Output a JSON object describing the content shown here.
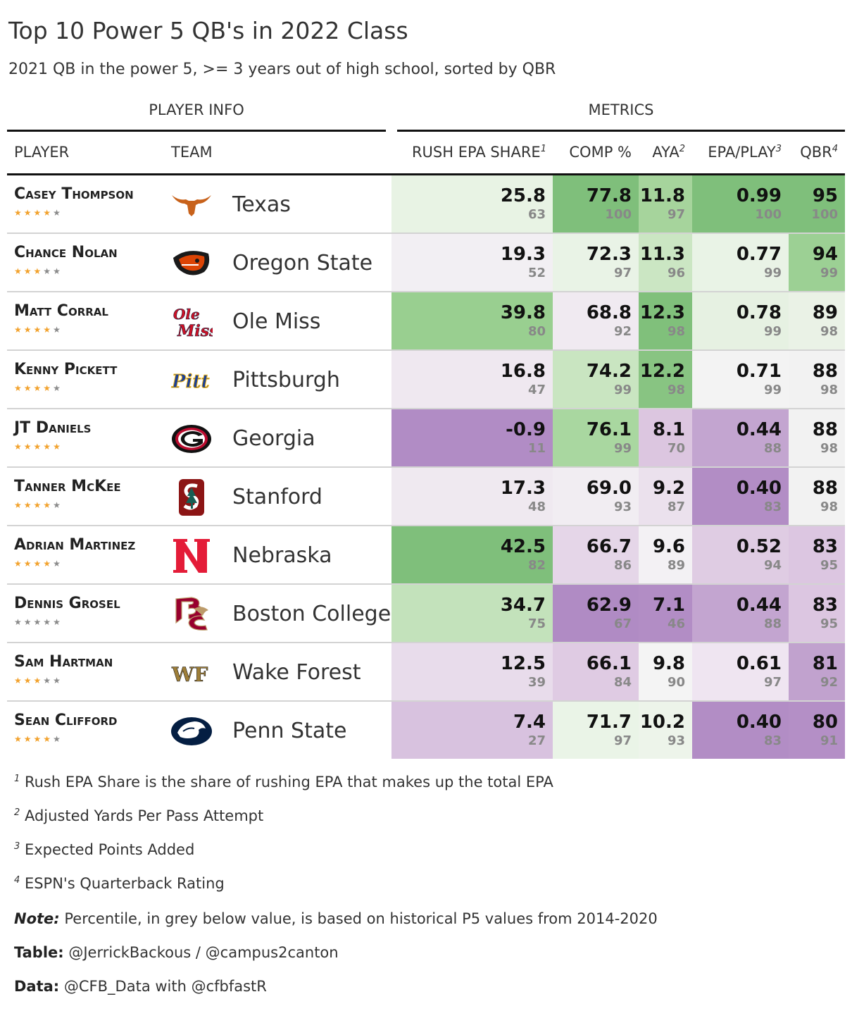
{
  "title": "Top 10 Power 5 QB's in 2022 Class",
  "subtitle": "2021 QB in the power 5, >= 3 years out of high school, sorted by QBR",
  "spanners": {
    "player_info": "PLAYER INFO",
    "metrics": "METRICS"
  },
  "columns": {
    "player": "PLAYER",
    "team": "TEAM",
    "rush_epa": "RUSH EPA SHARE",
    "rush_epa_fn": "1",
    "comp": "COMP %",
    "aya": "AYA",
    "aya_fn": "2",
    "epa_play": "EPA/PLAY",
    "epa_play_fn": "3",
    "qbr": "QBR",
    "qbr_fn": "4"
  },
  "colors": {
    "green_dark": "#7fbf7b",
    "green_mid": "#a6dba0",
    "green_light": "#d9f0d3",
    "neutral": "#f7f7f7",
    "purple_light": "#e7d4e8",
    "purple_mid": "#c2a5cf",
    "purple_dark": "#af8dc3",
    "star_on": "#f2a22d",
    "star_off": "#8a8a8a"
  },
  "chart_data": {
    "type": "table",
    "title": "Top 10 Power 5 QB's in 2022 Class",
    "rows": [
      {
        "player": "Casey Thompson",
        "stars": 4,
        "logo": "texas-longhorn-logo",
        "team": "Texas",
        "rush_epa": "25.8",
        "rush_epa_pct": "63",
        "comp": "77.8",
        "comp_pct": "100",
        "aya": "11.8",
        "aya_pct": "97",
        "epa_play": "0.99",
        "epa_play_pct": "100",
        "qbr": "95",
        "qbr_pct": "100",
        "colors": {
          "rush_epa": "#e8f3e4",
          "comp": "#7fbf7b",
          "aya": "#a6d49c",
          "epa_play": "#7fbf7b",
          "qbr": "#7fbf7b"
        }
      },
      {
        "player": "Chance Nolan",
        "stars": 3,
        "logo": "oregon-state-beaver-logo",
        "team": "Oregon State",
        "rush_epa": "19.3",
        "rush_epa_pct": "52",
        "comp": "72.3",
        "comp_pct": "97",
        "aya": "11.3",
        "aya_pct": "96",
        "epa_play": "0.77",
        "epa_play_pct": "99",
        "qbr": "94",
        "qbr_pct": "99",
        "colors": {
          "rush_epa": "#f2eff3",
          "comp": "#e9f3e6",
          "aya": "#cbe6c3",
          "epa_play": "#e9f3e6",
          "qbr": "#9cd094"
        }
      },
      {
        "player": "Matt Corral",
        "stars": 4,
        "logo": "ole-miss-script-logo",
        "team": "Ole Miss",
        "rush_epa": "39.8",
        "rush_epa_pct": "80",
        "comp": "68.8",
        "comp_pct": "92",
        "aya": "12.3",
        "aya_pct": "98",
        "epa_play": "0.78",
        "epa_play_pct": "99",
        "qbr": "89",
        "qbr_pct": "98",
        "colors": {
          "rush_epa": "#99cf90",
          "comp": "#f0eaf1",
          "aya": "#80c07b",
          "epa_play": "#e6f1e2",
          "qbr": "#eaf2e6"
        }
      },
      {
        "player": "Kenny Pickett",
        "stars": 4,
        "logo": "pitt-script-logo",
        "team": "Pittsburgh",
        "rush_epa": "16.8",
        "rush_epa_pct": "47",
        "comp": "74.2",
        "comp_pct": "99",
        "aya": "12.2",
        "aya_pct": "98",
        "epa_play": "0.71",
        "epa_play_pct": "99",
        "qbr": "88",
        "qbr_pct": "98",
        "colors": {
          "rush_epa": "#efe8f0",
          "comp": "#c9e5c1",
          "aya": "#88c482",
          "epa_play": "#f3f3f3",
          "qbr": "#f2f2f2"
        }
      },
      {
        "player": "JT Daniels",
        "stars": 5,
        "logo": "georgia-g-logo",
        "team": "Georgia",
        "rush_epa": "-0.9",
        "rush_epa_pct": "11",
        "comp": "76.1",
        "comp_pct": "99",
        "aya": "8.1",
        "aya_pct": "70",
        "epa_play": "0.44",
        "epa_play_pct": "88",
        "qbr": "88",
        "qbr_pct": "98",
        "colors": {
          "rush_epa": "#b18cc5",
          "comp": "#a9d7a0",
          "aya": "#dcc6e0",
          "epa_play": "#c3a5d0",
          "qbr": "#f2f2f2"
        }
      },
      {
        "player": "Tanner McKee",
        "stars": 4,
        "logo": "stanford-s-tree-logo",
        "team": "Stanford",
        "rush_epa": "17.3",
        "rush_epa_pct": "48",
        "comp": "69.0",
        "comp_pct": "93",
        "aya": "9.2",
        "aya_pct": "87",
        "epa_play": "0.40",
        "epa_play_pct": "83",
        "qbr": "88",
        "qbr_pct": "98",
        "colors": {
          "rush_epa": "#efe9f0",
          "comp": "#f1edf2",
          "aya": "#ebe1ed",
          "epa_play": "#b28dc5",
          "qbr": "#f2f2f2"
        }
      },
      {
        "player": "Adrian Martinez",
        "stars": 4,
        "logo": "nebraska-n-logo",
        "team": "Nebraska",
        "rush_epa": "42.5",
        "rush_epa_pct": "82",
        "comp": "66.7",
        "comp_pct": "86",
        "aya": "9.6",
        "aya_pct": "89",
        "epa_play": "0.52",
        "epa_play_pct": "94",
        "qbr": "83",
        "qbr_pct": "95",
        "colors": {
          "rush_epa": "#7fbf7b",
          "comp": "#e5d6e8",
          "aya": "#f3f1f4",
          "epa_play": "#dfcce3",
          "qbr": "#dcc6e1"
        }
      },
      {
        "player": "Dennis Grosel",
        "stars": 0,
        "logo": "boston-college-logo",
        "team": "Boston College",
        "rush_epa": "34.7",
        "rush_epa_pct": "75",
        "comp": "62.9",
        "comp_pct": "67",
        "aya": "7.1",
        "aya_pct": "46",
        "epa_play": "0.44",
        "epa_play_pct": "88",
        "qbr": "83",
        "qbr_pct": "95",
        "colors": {
          "rush_epa": "#c3e2bb",
          "comp": "#b08bc4",
          "aya": "#b28dc5",
          "epa_play": "#c3a5d0",
          "qbr": "#dcc6e1"
        }
      },
      {
        "player": "Sam Hartman",
        "stars": 3,
        "logo": "wake-forest-wf-logo",
        "team": "Wake Forest",
        "rush_epa": "12.5",
        "rush_epa_pct": "39",
        "comp": "66.1",
        "comp_pct": "84",
        "aya": "9.8",
        "aya_pct": "90",
        "epa_play": "0.61",
        "epa_play_pct": "97",
        "qbr": "81",
        "qbr_pct": "92",
        "colors": {
          "rush_epa": "#e8dceb",
          "comp": "#dfcbe3",
          "aya": "#f4f4f4",
          "epa_play": "#efe5f1",
          "qbr": "#c1a2ce"
        }
      },
      {
        "player": "Sean Clifford",
        "stars": 4,
        "logo": "penn-state-lion-logo",
        "team": "Penn State",
        "rush_epa": "7.4",
        "rush_epa_pct": "27",
        "comp": "71.7",
        "comp_pct": "97",
        "aya": "10.2",
        "aya_pct": "93",
        "epa_play": "0.40",
        "epa_play_pct": "83",
        "qbr": "80",
        "qbr_pct": "91",
        "colors": {
          "rush_epa": "#d8c2df",
          "comp": "#eaf4e7",
          "aya": "#edf4ea",
          "epa_play": "#b28dc5",
          "qbr": "#b48fc6"
        }
      }
    ]
  },
  "footnotes": [
    {
      "mark": "1",
      "text": "Rush EPA Share is the share of rushing EPA that makes up the total EPA"
    },
    {
      "mark": "2",
      "text": "Adjusted Yards Per Pass Attempt"
    },
    {
      "mark": "3",
      "text": "Expected Points Added"
    },
    {
      "mark": "4",
      "text": "ESPN's Quarterback Rating"
    }
  ],
  "source_notes": [
    {
      "label": "Note:",
      "text": " Percentile, in grey below value, is based on historical P5 values from 2014-2020",
      "italic": true
    },
    {
      "label": "Table:",
      "text": " @JerrickBackous / @campus2canton",
      "italic": false
    },
    {
      "label": "Data:",
      "text": " @CFB_Data with @cfbfastR",
      "italic": false
    }
  ]
}
